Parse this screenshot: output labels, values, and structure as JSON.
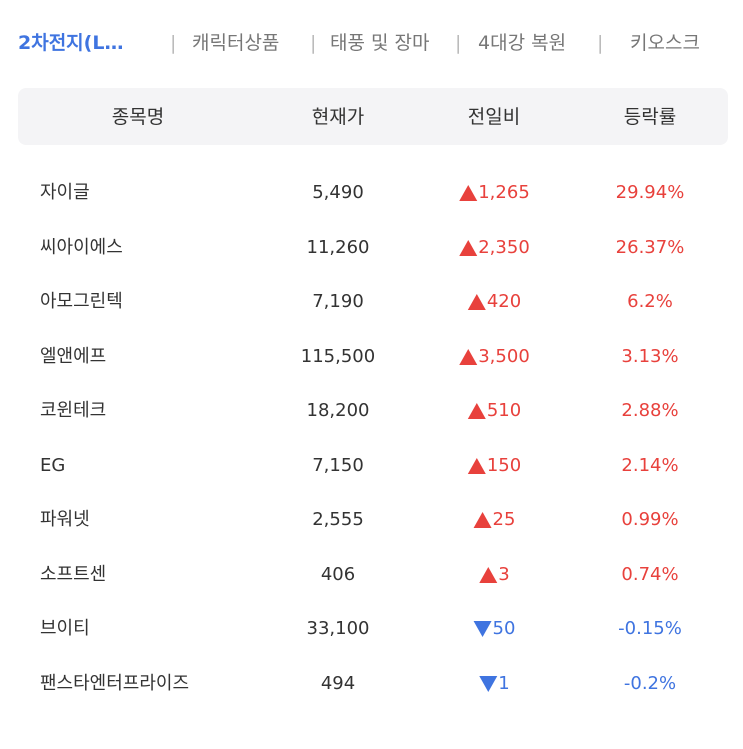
{
  "tabs": [
    {
      "label": "2차전지(L…",
      "active": true
    },
    {
      "label": "캐릭터상품",
      "active": false
    },
    {
      "label": "태풍 및 장마",
      "active": false
    },
    {
      "label": "4대강 복원",
      "active": false
    },
    {
      "label": "키오스크",
      "active": false
    }
  ],
  "table": {
    "header": [
      "종목명",
      "현재가",
      "전일비",
      "등락률"
    ],
    "rows": [
      {
        "name": "자이글",
        "price": "5,490",
        "direction": "up",
        "change": "1,265",
        "rate": "29.94%"
      },
      {
        "name": "씨아이에스",
        "price": "11,260",
        "direction": "up",
        "change": "2,350",
        "rate": "26.37%"
      },
      {
        "name": "아모그린텍",
        "price": "7,190",
        "direction": "up",
        "change": "420",
        "rate": "6.2%"
      },
      {
        "name": "엘앤에프",
        "price": "115,500",
        "direction": "up",
        "change": "3,500",
        "rate": "3.13%"
      },
      {
        "name": "코윈테크",
        "price": "18,200",
        "direction": "up",
        "change": "510",
        "rate": "2.88%"
      },
      {
        "name": "EG",
        "price": "7,150",
        "direction": "up",
        "change": "150",
        "rate": "2.14%"
      },
      {
        "name": "파워넷",
        "price": "2,555",
        "direction": "up",
        "change": "25",
        "rate": "0.99%"
      },
      {
        "name": "소프트센",
        "price": "406",
        "direction": "up",
        "change": "3",
        "rate": "0.74%"
      },
      {
        "name": "브이티",
        "price": "33,100",
        "direction": "down",
        "change": "50",
        "rate": "-0.15%"
      },
      {
        "name": "팬스타엔터프라이즈",
        "price": "494",
        "direction": "down",
        "change": "1",
        "rate": "-0.2%"
      }
    ]
  }
}
